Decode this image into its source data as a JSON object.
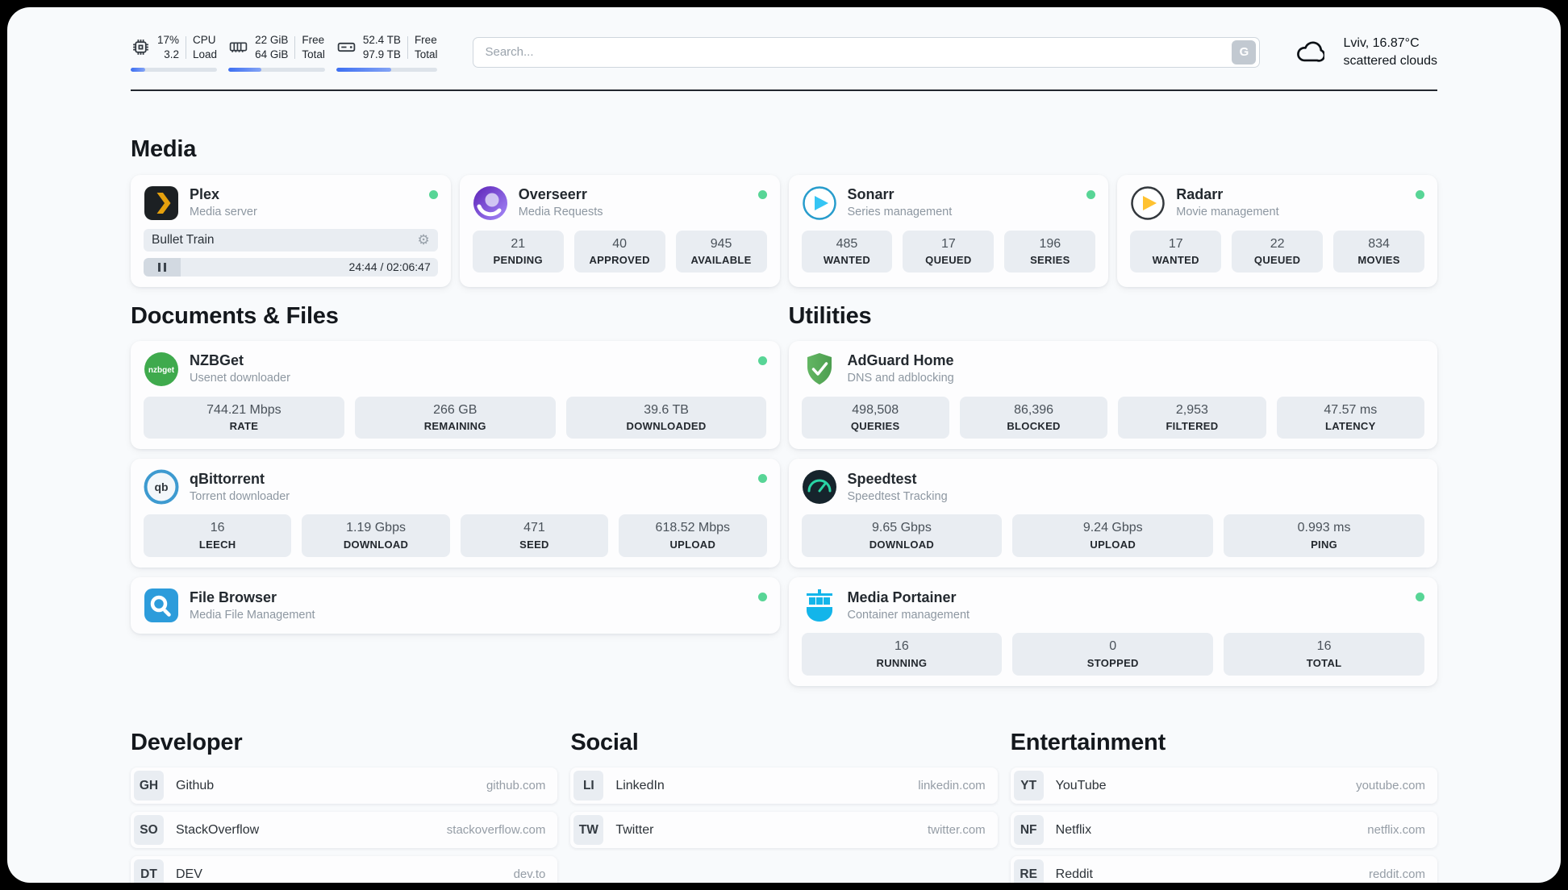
{
  "colors": {
    "status_online": "#58d596",
    "accent_bar": "#3d6ff2"
  },
  "topbar": {
    "cpu": {
      "percent": "17%",
      "load": "3.2",
      "labels": [
        "CPU",
        "Load"
      ],
      "bar_percent": 17
    },
    "memory": {
      "free": "22 GiB",
      "total": "64 GiB",
      "labels": [
        "Free",
        "Total"
      ],
      "bar_percent": 34
    },
    "disk": {
      "free": "52.4 TB",
      "total": "97.9 TB",
      "labels": [
        "Free",
        "Total"
      ],
      "bar_percent": 54
    },
    "search": {
      "placeholder": "Search...",
      "button_label": "G"
    },
    "weather": {
      "location": "Lviv, 16.87°C",
      "condition": "scattered clouds"
    }
  },
  "media": {
    "title": "Media",
    "plex": {
      "name": "Plex",
      "subtitle": "Media server",
      "online": true,
      "now_playing": "Bullet Train",
      "time": "24:44 / 02:06:47",
      "gear_icon": "⚙"
    },
    "overseerr": {
      "name": "Overseerr",
      "subtitle": "Media Requests",
      "online": true,
      "stats": [
        {
          "value": "21",
          "label": "PENDING"
        },
        {
          "value": "40",
          "label": "APPROVED"
        },
        {
          "value": "945",
          "label": "AVAILABLE"
        }
      ]
    },
    "sonarr": {
      "name": "Sonarr",
      "subtitle": "Series management",
      "online": true,
      "stats": [
        {
          "value": "485",
          "label": "WANTED"
        },
        {
          "value": "17",
          "label": "QUEUED"
        },
        {
          "value": "196",
          "label": "SERIES"
        }
      ]
    },
    "radarr": {
      "name": "Radarr",
      "subtitle": "Movie management",
      "online": true,
      "stats": [
        {
          "value": "17",
          "label": "WANTED"
        },
        {
          "value": "22",
          "label": "QUEUED"
        },
        {
          "value": "834",
          "label": "MOVIES"
        }
      ]
    }
  },
  "documents": {
    "title": "Documents & Files",
    "nzbget": {
      "name": "NZBGet",
      "subtitle": "Usenet downloader",
      "online": true,
      "stats": [
        {
          "value": "744.21 Mbps",
          "label": "RATE"
        },
        {
          "value": "266 GB",
          "label": "REMAINING"
        },
        {
          "value": "39.6 TB",
          "label": "DOWNLOADED"
        }
      ]
    },
    "qbittorrent": {
      "name": "qBittorrent",
      "subtitle": "Torrent downloader",
      "online": true,
      "stats": [
        {
          "value": "16",
          "label": "LEECH"
        },
        {
          "value": "1.19 Gbps",
          "label": "DOWNLOAD"
        },
        {
          "value": "471",
          "label": "SEED"
        },
        {
          "value": "618.52 Mbps",
          "label": "UPLOAD"
        }
      ]
    },
    "filebrowser": {
      "name": "File Browser",
      "subtitle": "Media File Management",
      "online": true
    }
  },
  "utilities": {
    "title": "Utilities",
    "adguard": {
      "name": "AdGuard Home",
      "subtitle": "DNS and adblocking",
      "stats": [
        {
          "value": "498,508",
          "label": "QUERIES"
        },
        {
          "value": "86,396",
          "label": "BLOCKED"
        },
        {
          "value": "2,953",
          "label": "FILTERED"
        },
        {
          "value": "47.57 ms",
          "label": "LATENCY"
        }
      ]
    },
    "speedtest": {
      "name": "Speedtest",
      "subtitle": "Speedtest Tracking",
      "stats": [
        {
          "value": "9.65 Gbps",
          "label": "DOWNLOAD"
        },
        {
          "value": "9.24 Gbps",
          "label": "UPLOAD"
        },
        {
          "value": "0.993 ms",
          "label": "PING"
        }
      ]
    },
    "portainer": {
      "name": "Media Portainer",
      "subtitle": "Container management",
      "online": true,
      "stats": [
        {
          "value": "16",
          "label": "RUNNING"
        },
        {
          "value": "0",
          "label": "STOPPED"
        },
        {
          "value": "16",
          "label": "TOTAL"
        }
      ]
    }
  },
  "bookmarks": {
    "developer": {
      "title": "Developer",
      "items": [
        {
          "abbr": "GH",
          "name": "Github",
          "url": "github.com"
        },
        {
          "abbr": "SO",
          "name": "StackOverflow",
          "url": "stackoverflow.com"
        },
        {
          "abbr": "DT",
          "name": "DEV",
          "url": "dev.to"
        }
      ]
    },
    "social": {
      "title": "Social",
      "items": [
        {
          "abbr": "LI",
          "name": "LinkedIn",
          "url": "linkedin.com"
        },
        {
          "abbr": "TW",
          "name": "Twitter",
          "url": "twitter.com"
        }
      ]
    },
    "entertainment": {
      "title": "Entertainment",
      "items": [
        {
          "abbr": "YT",
          "name": "YouTube",
          "url": "youtube.com"
        },
        {
          "abbr": "NF",
          "name": "Netflix",
          "url": "netflix.com"
        },
        {
          "abbr": "RE",
          "name": "Reddit",
          "url": "reddit.com"
        }
      ]
    }
  }
}
